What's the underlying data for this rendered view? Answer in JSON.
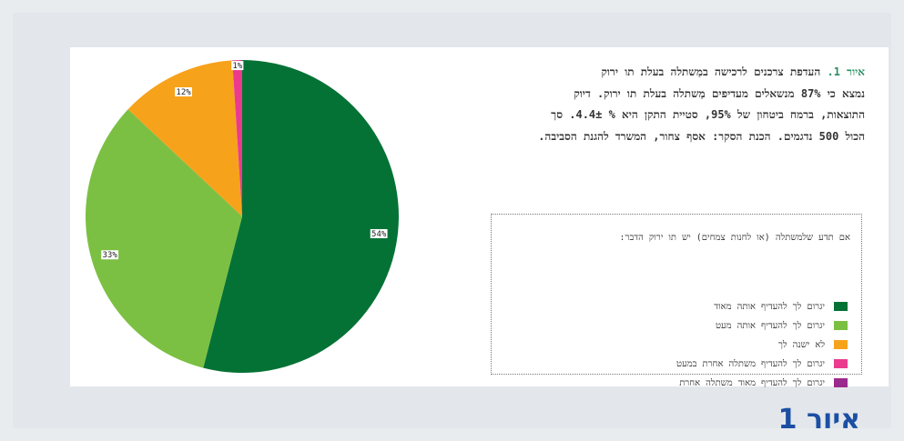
{
  "caption": {
    "figure_label": "איור 1.",
    "title_rest": " העדפת צרכנים לרכישה במַשתלה בעלת תו ירוק",
    "lines": [
      "נמצא כי 87% מנשאלים מעדיפים מַשתלה בעלת תו ירוק. דיוק",
      "התוצאות, ברמח ביטחון של 95%, סטיית התקן היא % 4.4±. סך",
      "הכול 500 נדגמים. הכנת הסקר: אסף צחור, המשרד להגנת הסביבה."
    ]
  },
  "figure_title": "איור 1",
  "chart_data": {
    "type": "pie",
    "legend_title": "אם תדע שלמשתלה (או לחנות צמחים) יש תו ירוק הדבר:",
    "legend_position": "right",
    "slices": [
      {
        "label": "יגרום לך להעדיף אותה מאוד",
        "value": 54,
        "value_label": "54%",
        "color": "#047235"
      },
      {
        "label": "יגרום לך להעדיף אותה מעט",
        "value": 33,
        "value_label": "33%",
        "color": "#7bc043"
      },
      {
        "label": "לא ישנה לך",
        "value": 12,
        "value_label": "12%",
        "color": "#f7a21b"
      },
      {
        "label": "יגרום לך להעדיף משתלה אחרת במעט",
        "value": 1,
        "value_label": "1%",
        "color": "#ea3b8f"
      },
      {
        "label": "יגרום לך להעדיף מאוד משתלה אחרת",
        "value": 0,
        "value_label": "",
        "color": "#9b2a8e"
      }
    ]
  }
}
